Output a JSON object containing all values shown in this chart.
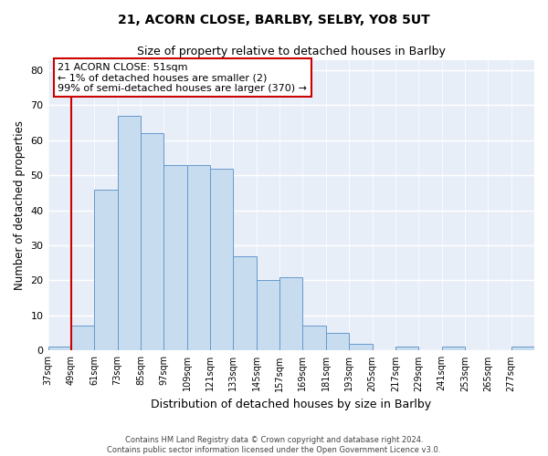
{
  "title": "21, ACORN CLOSE, BARLBY, SELBY, YO8 5UT",
  "subtitle": "Size of property relative to detached houses in Barlby",
  "xlabel": "Distribution of detached houses by size in Barlby",
  "ylabel": "Number of detached properties",
  "bin_labels": [
    "37sqm",
    "49sqm",
    "61sqm",
    "73sqm",
    "85sqm",
    "97sqm",
    "109sqm",
    "121sqm",
    "133sqm",
    "145sqm",
    "157sqm",
    "169sqm",
    "181sqm",
    "193sqm",
    "205sqm",
    "217sqm",
    "229sqm",
    "241sqm",
    "253sqm",
    "265sqm",
    "277sqm"
  ],
  "bin_edges": [
    37,
    49,
    61,
    73,
    85,
    97,
    109,
    121,
    133,
    145,
    157,
    169,
    181,
    193,
    205,
    217,
    229,
    241,
    253,
    265,
    277,
    289
  ],
  "counts": [
    1,
    7,
    46,
    67,
    62,
    53,
    53,
    52,
    27,
    20,
    21,
    7,
    5,
    2,
    0,
    1,
    0,
    1,
    0,
    0,
    1
  ],
  "bar_color": "#c8dcf0",
  "bar_edge_color": "#6699cc",
  "vline_x": 49,
  "vline_color": "#cc0000",
  "bg_color": "#e8eef8",
  "ylim": [
    0,
    83
  ],
  "yticks": [
    0,
    10,
    20,
    30,
    40,
    50,
    60,
    70,
    80
  ],
  "annotation_text": "21 ACORN CLOSE: 51sqm\n← 1% of detached houses are smaller (2)\n99% of semi-detached houses are larger (370) →",
  "annotation_box_color": "#ffffff",
  "annotation_border_color": "#cc0000",
  "footer1": "Contains HM Land Registry data © Crown copyright and database right 2024.",
  "footer2": "Contains public sector information licensed under the Open Government Licence v3.0."
}
